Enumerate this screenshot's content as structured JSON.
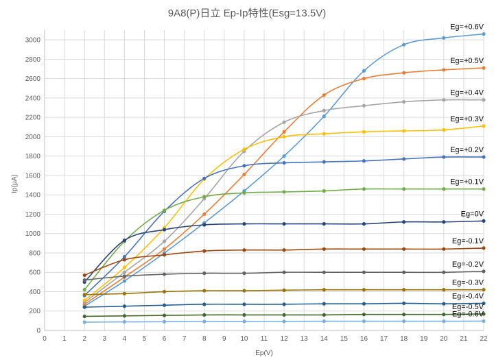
{
  "chart_data": {
    "type": "line",
    "title": "9A8(P)日立 Ep-Ip特性(Esg=13.5V)",
    "xlabel": "Ep(V)",
    "ylabel": "Ip(μA)",
    "xlim": [
      0,
      22
    ],
    "ylim": [
      0,
      3100
    ],
    "x_ticks": [
      "0",
      "1",
      "2",
      "3",
      "4",
      "5",
      "6",
      "7",
      "8",
      "9",
      "10",
      "11",
      "12",
      "13",
      "14",
      "15",
      "16",
      "17",
      "18",
      "19",
      "20",
      "21",
      "22"
    ],
    "y_ticks": [
      "0",
      "200",
      "400",
      "600",
      "800",
      "1000",
      "1200",
      "1400",
      "1600",
      "1800",
      "2000",
      "2200",
      "2400",
      "2600",
      "2800",
      "3000"
    ],
    "grid": true,
    "legend": "none",
    "x": [
      2,
      4,
      6,
      8,
      10,
      12,
      14,
      16,
      18,
      20,
      22
    ],
    "series": [
      {
        "name": "Eg=+0.6V",
        "color": "#5b9bd5",
        "values": [
          250,
          510,
          800,
          1110,
          1440,
          1800,
          2210,
          2680,
          2950,
          3020,
          3060
        ]
      },
      {
        "name": "Eg=+0.5V",
        "color": "#ed7d31",
        "values": [
          270,
          550,
          840,
          1200,
          1610,
          2050,
          2430,
          2600,
          2660,
          2690,
          2710
        ]
      },
      {
        "name": "Eg=+0.4V",
        "color": "#a5a5a5",
        "values": [
          290,
          600,
          920,
          1360,
          1850,
          2150,
          2270,
          2320,
          2360,
          2380,
          2380
        ]
      },
      {
        "name": "Eg=+0.3V",
        "color": "#ffc000",
        "values": [
          310,
          650,
          1060,
          1560,
          1870,
          2000,
          2030,
          2050,
          2060,
          2070,
          2110
        ]
      },
      {
        "name": "Eg=+0.2V",
        "color": "#4472c4",
        "values": [
          360,
          760,
          1230,
          1570,
          1700,
          1730,
          1740,
          1750,
          1770,
          1790,
          1790
        ]
      },
      {
        "name": "Eg=+0.1V",
        "color": "#70ad47",
        "values": [
          420,
          920,
          1240,
          1380,
          1420,
          1430,
          1440,
          1460,
          1460,
          1460,
          1460
        ]
      },
      {
        "name": "Eg=0V",
        "color": "#264478",
        "values": [
          500,
          930,
          1040,
          1090,
          1100,
          1100,
          1100,
          1100,
          1120,
          1120,
          1130
        ]
      },
      {
        "name": "Eg=-0.1V",
        "color": "#9e480e",
        "values": [
          570,
          730,
          780,
          820,
          830,
          830,
          840,
          840,
          840,
          840,
          850
        ]
      },
      {
        "name": "Eg=-0.2V",
        "color": "#636363",
        "values": [
          520,
          560,
          580,
          590,
          590,
          600,
          600,
          600,
          600,
          600,
          610
        ]
      },
      {
        "name": "Eg=-0.3V",
        "color": "#997300",
        "values": [
          370,
          380,
          400,
          410,
          410,
          415,
          420,
          420,
          420,
          420,
          420
        ]
      },
      {
        "name": "Eg=-0.4V",
        "color": "#255e91",
        "values": [
          240,
          250,
          260,
          270,
          270,
          270,
          275,
          275,
          280,
          275,
          280
        ]
      },
      {
        "name": "Eg=-0.5V",
        "color": "#43682b",
        "values": [
          145,
          150,
          155,
          160,
          160,
          160,
          160,
          165,
          165,
          165,
          170
        ]
      },
      {
        "name": "Eg=-0.6V",
        "color": "#7cafdd",
        "values": [
          85,
          88,
          90,
          92,
          93,
          93,
          95,
          95,
          95,
          95,
          96
        ]
      }
    ]
  },
  "colors": {
    "grid": "#d9d9d9",
    "axis": "#bfbfbf",
    "text": "#595959"
  }
}
